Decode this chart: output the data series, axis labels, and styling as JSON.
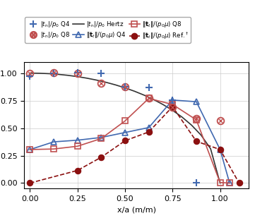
{
  "xlabel": "x/a (m/m)",
  "xlim": [
    -0.03,
    1.15
  ],
  "ylim": [
    -0.05,
    1.1
  ],
  "xticks": [
    0.0,
    0.25,
    0.5,
    0.75,
    1.0
  ],
  "yticks": [
    0.0,
    0.25,
    0.5,
    0.75,
    1.0
  ],
  "hertz_x": [
    0.0,
    0.05,
    0.1,
    0.15,
    0.2,
    0.25,
    0.3,
    0.35,
    0.4,
    0.45,
    0.5,
    0.55,
    0.6,
    0.65,
    0.7,
    0.75,
    0.8,
    0.85,
    0.9,
    0.95,
    1.0
  ],
  "hertz_y": [
    1.0,
    0.9987,
    0.995,
    0.9887,
    0.9798,
    0.9682,
    0.9539,
    0.9367,
    0.9165,
    0.893,
    0.866,
    0.8352,
    0.8,
    0.7599,
    0.7141,
    0.6614,
    0.6,
    0.5268,
    0.4359,
    0.3122,
    0.0
  ],
  "tn_Q4_x": [
    0.0,
    0.125,
    0.25,
    0.375,
    0.5,
    0.625,
    0.75,
    0.875
  ],
  "tn_Q4_y": [
    0.97,
    1.0,
    1.005,
    1.0,
    0.875,
    0.87,
    0.755,
    0.0
  ],
  "tn_Q8_x": [
    0.0,
    0.125,
    0.25,
    0.375,
    0.5,
    0.625,
    0.75,
    0.875,
    1.0
  ],
  "tn_Q8_y": [
    1.0,
    1.005,
    1.0,
    0.905,
    0.875,
    0.77,
    0.69,
    0.59,
    0.57
  ],
  "tt_Q4_x": [
    0.0,
    0.125,
    0.25,
    0.375,
    0.5,
    0.625,
    0.75,
    0.875,
    1.0,
    1.05
  ],
  "tt_Q4_y": [
    0.305,
    0.375,
    0.39,
    0.415,
    0.46,
    0.505,
    0.755,
    0.74,
    0.305,
    0.0
  ],
  "tt_Q8_x": [
    0.0,
    0.125,
    0.25,
    0.375,
    0.5,
    0.625,
    0.75,
    0.875,
    1.0,
    1.05
  ],
  "tt_Q8_y": [
    0.305,
    0.31,
    0.335,
    0.405,
    0.565,
    0.77,
    0.715,
    0.575,
    0.005,
    0.0
  ],
  "tt_ref_x": [
    0.0,
    0.25,
    0.375,
    0.5,
    0.625,
    0.75,
    0.875,
    1.0,
    1.1
  ],
  "tt_ref_y": [
    0.0,
    0.115,
    0.235,
    0.385,
    0.465,
    0.695,
    0.38,
    0.305,
    0.0
  ],
  "color_blue": "#4169b0",
  "color_red": "#c05050",
  "color_dark_red": "#8b1010",
  "color_black": "#333333"
}
